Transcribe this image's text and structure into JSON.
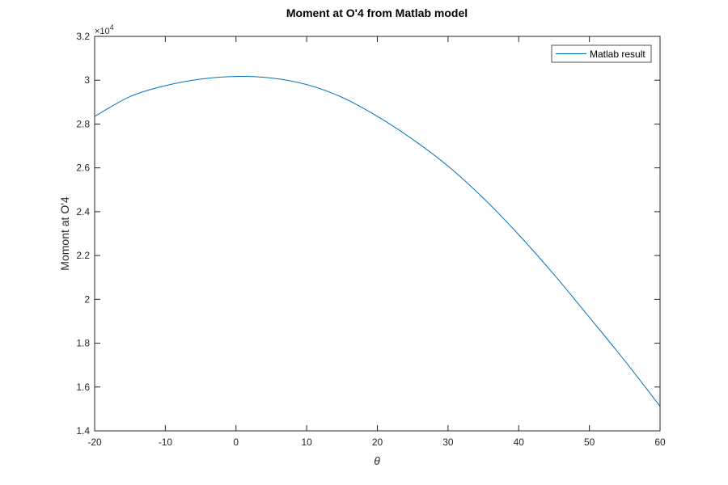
{
  "chart_data": {
    "type": "line",
    "title": "Moment at O'4 from Matlab model",
    "xlabel": "θ",
    "ylabel": "Momont at O'4",
    "xlim": [
      -20,
      60
    ],
    "ylim": [
      14000,
      32000
    ],
    "x_ticks": [
      -20,
      -10,
      0,
      10,
      20,
      30,
      40,
      50,
      60
    ],
    "y_ticks": [
      14000,
      16000,
      18000,
      20000,
      22000,
      24000,
      26000,
      28000,
      30000,
      32000
    ],
    "x_tick_labels": [
      "-20",
      "-10",
      "0",
      "10",
      "20",
      "30",
      "40",
      "50",
      "60"
    ],
    "y_tick_labels": [
      "1.4",
      "1.6",
      "1.8",
      "2",
      "2.2",
      "2.4",
      "2.6",
      "2.8",
      "3",
      "3.2"
    ],
    "y_exponent_base": "×10",
    "y_exponent_power": "4",
    "grid": false,
    "legend_position": "top-right",
    "series": [
      {
        "name": "Matlab result",
        "color": "#0072BD",
        "x": [
          -20,
          -15,
          -10,
          -5,
          0,
          5,
          10,
          15,
          20,
          25,
          30,
          35,
          40,
          45,
          50,
          55,
          60
        ],
        "y": [
          28350,
          29250,
          29750,
          30050,
          30170,
          30100,
          29800,
          29220,
          28350,
          27300,
          26080,
          24620,
          22950,
          21130,
          19180,
          17200,
          15120
        ]
      }
    ]
  }
}
